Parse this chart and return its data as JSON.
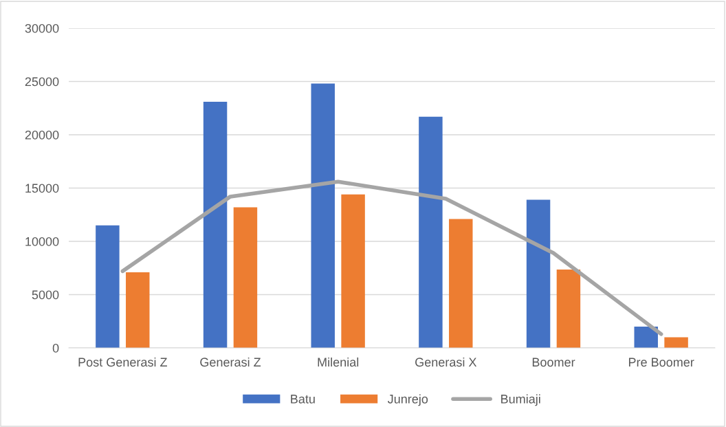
{
  "chart_data": {
    "type": "bar",
    "categories": [
      "Post Generasi Z",
      "Generasi Z",
      "Milenial",
      "Generasi X",
      "Boomer",
      "Pre Boomer"
    ],
    "series": [
      {
        "name": "Batu",
        "color": "#4472c4",
        "values": [
          11500,
          23100,
          24800,
          21700,
          13900,
          2000
        ]
      },
      {
        "name": "Junrejo",
        "color": "#ed7d31",
        "values": [
          7100,
          13200,
          14400,
          12100,
          7350,
          1000
        ]
      },
      {
        "name": "Bumiaji",
        "color": "#a5a5a5",
        "type": "line",
        "values": [
          7200,
          14200,
          15600,
          14000,
          8900,
          1300
        ]
      }
    ],
    "ylim": [
      0,
      30000
    ],
    "yticks": [
      0,
      5000,
      10000,
      15000,
      20000,
      25000,
      30000
    ],
    "grid": "y",
    "legend": "bottom"
  }
}
